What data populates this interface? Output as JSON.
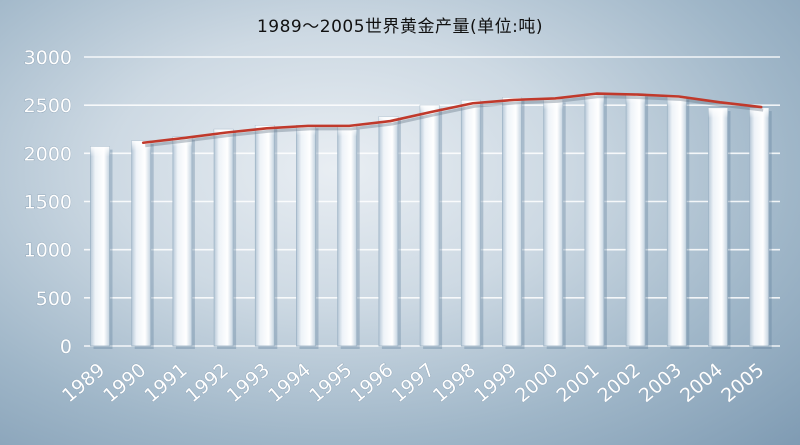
{
  "chart_data": {
    "type": "bar",
    "title": "1989～2005世界黄金产量(单位:吨)",
    "categories": [
      "1989",
      "1990",
      "1991",
      "1992",
      "1993",
      "1994",
      "1995",
      "1996",
      "1997",
      "1998",
      "1999",
      "2000",
      "2001",
      "2002",
      "2003",
      "2004",
      "2005"
    ],
    "series": [
      {
        "type": "bar",
        "values": [
          2070,
          2130,
          2170,
          2250,
          2290,
          2290,
          2280,
          2380,
          2500,
          2550,
          2580,
          2560,
          2620,
          2620,
          2590,
          2470,
          2470
        ]
      },
      {
        "type": "line",
        "values": [
          null,
          2110,
          2160,
          2215,
          2260,
          2285,
          2285,
          2335,
          2430,
          2520,
          2555,
          2570,
          2620,
          2610,
          2590,
          2530,
          2480
        ]
      }
    ],
    "yticks": [
      "0",
      "500",
      "1000",
      "1500",
      "2000",
      "2500",
      "3000"
    ],
    "ylim": [
      0,
      3000
    ],
    "grid": true,
    "colors": {
      "line": "#c0392b",
      "grid": "#ffffff"
    }
  }
}
